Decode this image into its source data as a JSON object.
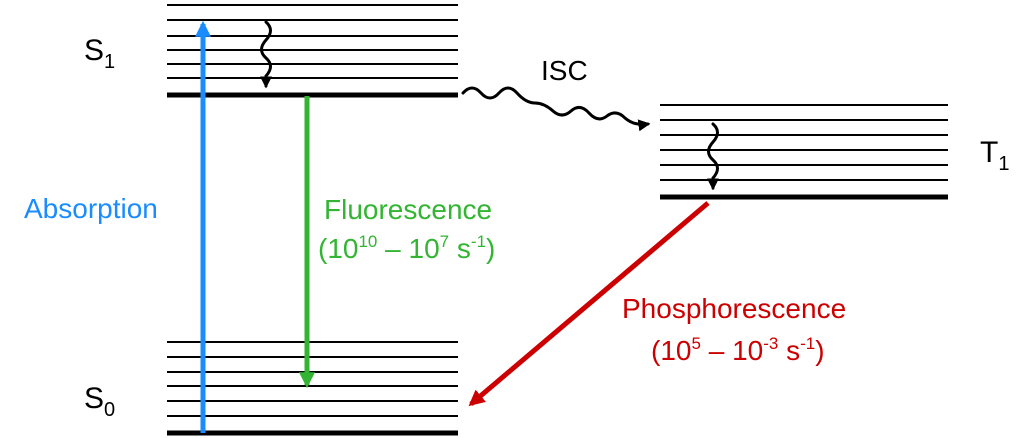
{
  "states": {
    "s1": {
      "base": "S",
      "sub": "1"
    },
    "s0": {
      "base": "S",
      "sub": "0"
    },
    "t1": {
      "base": "T",
      "sub": "1"
    }
  },
  "transitions": {
    "absorption": {
      "label": "Absorption",
      "color": "#1a8cff"
    },
    "fluorescence": {
      "label": "Fluorescence",
      "rate_open": "(10",
      "rate_exp1": "10",
      "rate_mid": " – 10",
      "rate_exp2": "7",
      "rate_unit": " s",
      "rate_exp3": "-1",
      "rate_close": ")",
      "color": "#33b533"
    },
    "isc": {
      "label": "ISC",
      "color": "#000000"
    },
    "phosphorescence": {
      "label": "Phosphorescence",
      "rate_open": "(10",
      "rate_exp1": "5",
      "rate_mid": " – 10",
      "rate_exp2": "-3",
      "rate_unit": " s",
      "rate_exp3": "-1",
      "rate_close": ")",
      "color": "#cc0000"
    }
  }
}
